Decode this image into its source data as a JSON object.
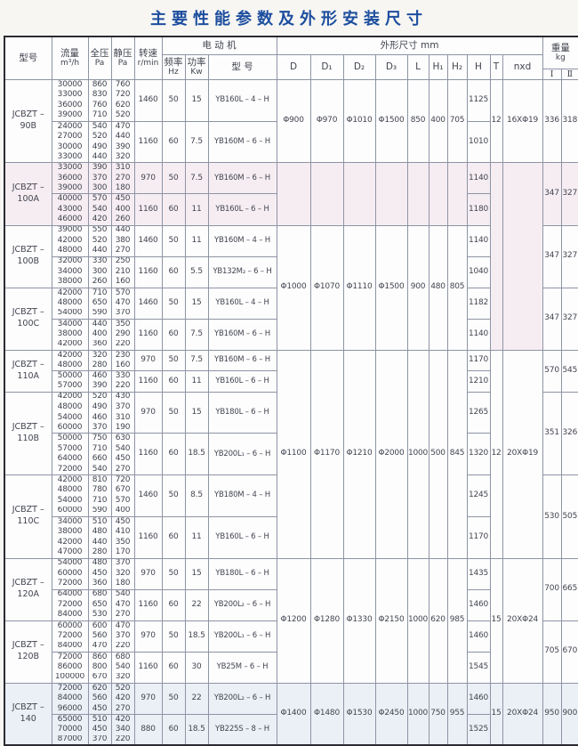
{
  "title": "主要性能参数及外形安装尺寸",
  "colors": {
    "title_blue": "#1d4e9e",
    "band_pink": "#f6edf3",
    "band_blue": "#ebeff6"
  },
  "header": {
    "model": "型号",
    "flow": [
      "流量",
      "m³/h"
    ],
    "total_pressure": [
      "全压",
      "Pa"
    ],
    "static_pressure": [
      "静压",
      "Pa"
    ],
    "speed": [
      "转速",
      "r/min"
    ],
    "motor_group": "电 动 机",
    "freq": [
      "频率",
      "Hz"
    ],
    "power": [
      "功率",
      "Kw"
    ],
    "motor_model": "型 号",
    "dims_group": "外形尺寸 mm",
    "dim_cols": [
      "D",
      "D₁",
      "D₂",
      "D₃",
      "L",
      "H₁",
      "H₂",
      "H",
      "T",
      "nxd"
    ],
    "weight_group": [
      "重量",
      "kg"
    ],
    "weight_cols": [
      "Ⅰ",
      "Ⅱ"
    ]
  },
  "models": [
    {
      "name": [
        "JCBZT –",
        "90B"
      ],
      "tint": "none",
      "weight": [
        "336",
        "318"
      ],
      "subs": [
        {
          "speed": "1460",
          "hz": "50",
          "kw": "15",
          "motor": "YB160L – 4 – H",
          "H": "1125",
          "rows": [
            [
              "30000",
              "860",
              "760"
            ],
            [
              "33000",
              "830",
              "720"
            ],
            [
              "36000",
              "760",
              "620"
            ],
            [
              "39000",
              "710",
              "520"
            ]
          ]
        },
        {
          "speed": "1160",
          "hz": "60",
          "kw": "7.5",
          "motor": "YB160M – 6 – H",
          "H": "1010",
          "rows": [
            [
              "24000",
              "540",
              "470"
            ],
            [
              "27000",
              "520",
              "440"
            ],
            [
              "30000",
              "490",
              "390"
            ],
            [
              "33000",
              "440",
              "320"
            ]
          ]
        }
      ]
    },
    {
      "name": [
        "JCBZT –",
        "100A"
      ],
      "tint": "pink",
      "weight": [
        "347",
        "327"
      ],
      "subs": [
        {
          "speed": "970",
          "hz": "50",
          "kw": "7.5",
          "motor": "YB160M – 6 – H",
          "H": "1140",
          "rows": [
            [
              "33000",
              "390",
              "310"
            ],
            [
              "36000",
              "370",
              "270"
            ],
            [
              "39000",
              "300",
              "180"
            ]
          ]
        },
        {
          "speed": "1160",
          "hz": "60",
          "kw": "11",
          "motor": "YB160L – 6 – H",
          "H": "1180",
          "rows": [
            [
              "40000",
              "570",
              "450"
            ],
            [
              "43000",
              "540",
              "400"
            ],
            [
              "46000",
              "420",
              "260"
            ]
          ]
        }
      ]
    },
    {
      "name": [
        "JCBZT –",
        "100B"
      ],
      "tint": "none",
      "weight": [
        "347",
        "327"
      ],
      "subs": [
        {
          "speed": "1460",
          "hz": "50",
          "kw": "11",
          "motor": "YB160M – 4 – H",
          "H": "1140",
          "rows": [
            [
              "39000",
              "550",
              "440"
            ],
            [
              "42000",
              "520",
              "380"
            ],
            [
              "48000",
              "440",
              "270"
            ]
          ]
        },
        {
          "speed": "1160",
          "hz": "60",
          "kw": "5.5",
          "motor": "YB132M₂ – 6 – H",
          "H": "1040",
          "rows": [
            [
              "32000",
              "330",
              "250"
            ],
            [
              "34000",
              "300",
              "210"
            ],
            [
              "38000",
              "260",
              "160"
            ]
          ]
        }
      ]
    },
    {
      "name": [
        "JCBZT –",
        "100C"
      ],
      "tint": "none",
      "weight": [
        "347",
        "327"
      ],
      "subs": [
        {
          "speed": "1460",
          "hz": "50",
          "kw": "15",
          "motor": "YB160L – 4 – H",
          "H": "1182",
          "rows": [
            [
              "42000",
              "710",
              "570"
            ],
            [
              "48000",
              "650",
              "470"
            ],
            [
              "54000",
              "590",
              "370"
            ]
          ]
        },
        {
          "speed": "1160",
          "hz": "60",
          "kw": "7.5",
          "motor": "YB160M – 6 – H",
          "H": "1140",
          "rows": [
            [
              "34000",
              "440",
              "350"
            ],
            [
              "38000",
              "400",
              "290"
            ],
            [
              "42000",
              "360",
              "220"
            ]
          ]
        }
      ]
    },
    {
      "name": [
        "JCBZT –",
        "110A"
      ],
      "tint": "none",
      "weight": [
        "570",
        "545"
      ],
      "subs": [
        {
          "speed": "970",
          "hz": "50",
          "kw": "7.5",
          "motor": "YB160M – 6 – H",
          "H": "1170",
          "rows": [
            [
              "42000",
              "320",
              "230"
            ],
            [
              "48000",
              "280",
              "160"
            ]
          ]
        },
        {
          "speed": "1160",
          "hz": "60",
          "kw": "11",
          "motor": "YB160L – 6 – H",
          "H": "1210",
          "rows": [
            [
              "50000",
              "460",
              "330"
            ],
            [
              "57000",
              "390",
              "220"
            ]
          ]
        }
      ]
    },
    {
      "name": [
        "JCBZT –",
        "110B"
      ],
      "tint": "none",
      "weight": [
        "351",
        "326"
      ],
      "subs": [
        {
          "speed": "970",
          "hz": "50",
          "kw": "15",
          "motor": "YB180L – 6 – H",
          "H": "1265",
          "rows": [
            [
              "42000",
              "520",
              "430"
            ],
            [
              "48000",
              "490",
              "370"
            ],
            [
              "54000",
              "460",
              "310"
            ],
            [
              "60000",
              "370",
              "190"
            ]
          ]
        },
        {
          "speed": "1160",
          "hz": "60",
          "kw": "18.5",
          "motor": "YB200L₁ – 6 – H",
          "H": "1320",
          "rows": [
            [
              "50000",
              "750",
              "630"
            ],
            [
              "57000",
              "710",
              "540"
            ],
            [
              "64000",
              "660",
              "450"
            ],
            [
              "72000",
              "540",
              "270"
            ]
          ]
        }
      ]
    },
    {
      "name": [
        "JCBZT –",
        "110C"
      ],
      "tint": "none",
      "weight": [
        "530",
        "505"
      ],
      "subs": [
        {
          "speed": "1460",
          "hz": "50",
          "kw": "8.5",
          "motor": "YB180M – 4 – H",
          "H": "1245",
          "rows": [
            [
              "42000",
              "810",
              "720"
            ],
            [
              "48000",
              "780",
              "670"
            ],
            [
              "54000",
              "710",
              "570"
            ],
            [
              "60000",
              "590",
              "400"
            ]
          ]
        },
        {
          "speed": "1160",
          "hz": "60",
          "kw": "11",
          "motor": "YB160L – 6 – H",
          "H": "1170",
          "rows": [
            [
              "34000",
              "510",
              "450"
            ],
            [
              "38000",
              "480",
              "410"
            ],
            [
              "42000",
              "440",
              "350"
            ],
            [
              "47000",
              "280",
              "170"
            ]
          ]
        }
      ]
    },
    {
      "name": [
        "JCBZT –",
        "120A"
      ],
      "tint": "none",
      "weight": [
        "700",
        "665"
      ],
      "subs": [
        {
          "speed": "970",
          "hz": "50",
          "kw": "15",
          "motor": "YB180L – 6 – H",
          "H": "1435",
          "rows": [
            [
              "54000",
              "480",
              "370"
            ],
            [
              "60000",
              "450",
              "320"
            ],
            [
              "72000",
              "360",
              "180"
            ]
          ]
        },
        {
          "speed": "1160",
          "hz": "60",
          "kw": "22",
          "motor": "YB200L₂ – 6 – H",
          "H": "1460",
          "rows": [
            [
              "64000",
              "680",
              "540"
            ],
            [
              "72000",
              "650",
              "470"
            ],
            [
              "84000",
              "530",
              "270"
            ]
          ]
        }
      ]
    },
    {
      "name": [
        "JCBZT –",
        "120B"
      ],
      "tint": "none",
      "weight": [
        "705",
        "670"
      ],
      "subs": [
        {
          "speed": "970",
          "hz": "50",
          "kw": "18.5",
          "motor": "YB200L₁ – 6 – H",
          "H": "1460",
          "rows": [
            [
              "60000",
              "600",
              "470"
            ],
            [
              "72000",
              "560",
              "370"
            ],
            [
              "84000",
              "470",
              "220"
            ]
          ]
        },
        {
          "speed": "1160",
          "hz": "60",
          "kw": "30",
          "motor": "YB25M – 6 – H",
          "H": "1545",
          "rows": [
            [
              "72000",
              "860",
              "680"
            ],
            [
              "86000",
              "800",
              "540"
            ],
            [
              "100000",
              "670",
              "320"
            ]
          ]
        }
      ]
    },
    {
      "name": [
        "JCBZT –",
        "140"
      ],
      "tint": "blue",
      "weight": [
        "950",
        "900"
      ],
      "subs": [
        {
          "speed": "970",
          "hz": "50",
          "kw": "22",
          "motor": "YB200L₂ – 6 – H",
          "H": "1460",
          "rows": [
            [
              "72000",
              "620",
              "520"
            ],
            [
              "84000",
              "560",
              "420"
            ],
            [
              "96000",
              "450",
              "270"
            ]
          ]
        },
        {
          "speed": "880",
          "hz": "60",
          "kw": "18.5",
          "motor": "YB225S – 8 – H",
          "H": "1525",
          "rows": [
            [
              "65000",
              "510",
              "420"
            ],
            [
              "70000",
              "450",
              "340"
            ],
            [
              "87000",
              "370",
              "220"
            ]
          ]
        }
      ]
    }
  ],
  "dim_cells": [
    {
      "start": 0,
      "count": 1,
      "values": {
        "D": "Φ900",
        "D1": "Φ970",
        "D2": "Φ1010",
        "D3": "Φ1500",
        "L": "850",
        "H1": "400",
        "H2": "705"
      }
    },
    {
      "start": 1,
      "count": 1,
      "values": null
    },
    {
      "start": 2,
      "count": 2,
      "values": {
        "D": "Φ1000",
        "D1": "Φ1070",
        "D2": "Φ1110",
        "D3": "Φ1500",
        "L": "900",
        "H1": "480",
        "H2": "805"
      }
    },
    {
      "start": 4,
      "count": 3,
      "values": {
        "D": "Φ1100",
        "D1": "Φ1170",
        "D2": "Φ1210",
        "D3": "Φ2000",
        "L": "1000",
        "H1": "500",
        "H2": "845"
      }
    },
    {
      "start": 7,
      "count": 2,
      "values": {
        "D": "Φ1200",
        "D1": "Φ1280",
        "D2": "Φ1330",
        "D3": "Φ2150",
        "L": "1000",
        "H1": "620",
        "H2": "985"
      }
    },
    {
      "start": 9,
      "count": 1,
      "values": {
        "D": "Φ1400",
        "D1": "Φ1480",
        "D2": "Φ1530",
        "D3": "Φ2450",
        "L": "1000",
        "H1": "750",
        "H2": "955"
      }
    }
  ],
  "bolt_cells": [
    {
      "start": 0,
      "count": 1,
      "T": "12",
      "nxd": "16XΦ19"
    },
    {
      "start": 1,
      "count": 3,
      "T": "",
      "nxd": ""
    },
    {
      "start": 4,
      "count": 3,
      "T": "12",
      "nxd": "20XΦ19"
    },
    {
      "start": 7,
      "count": 2,
      "T": "15",
      "nxd": "20XΦ24"
    },
    {
      "start": 9,
      "count": 1,
      "T": "15",
      "nxd": "20XΦ24"
    }
  ]
}
